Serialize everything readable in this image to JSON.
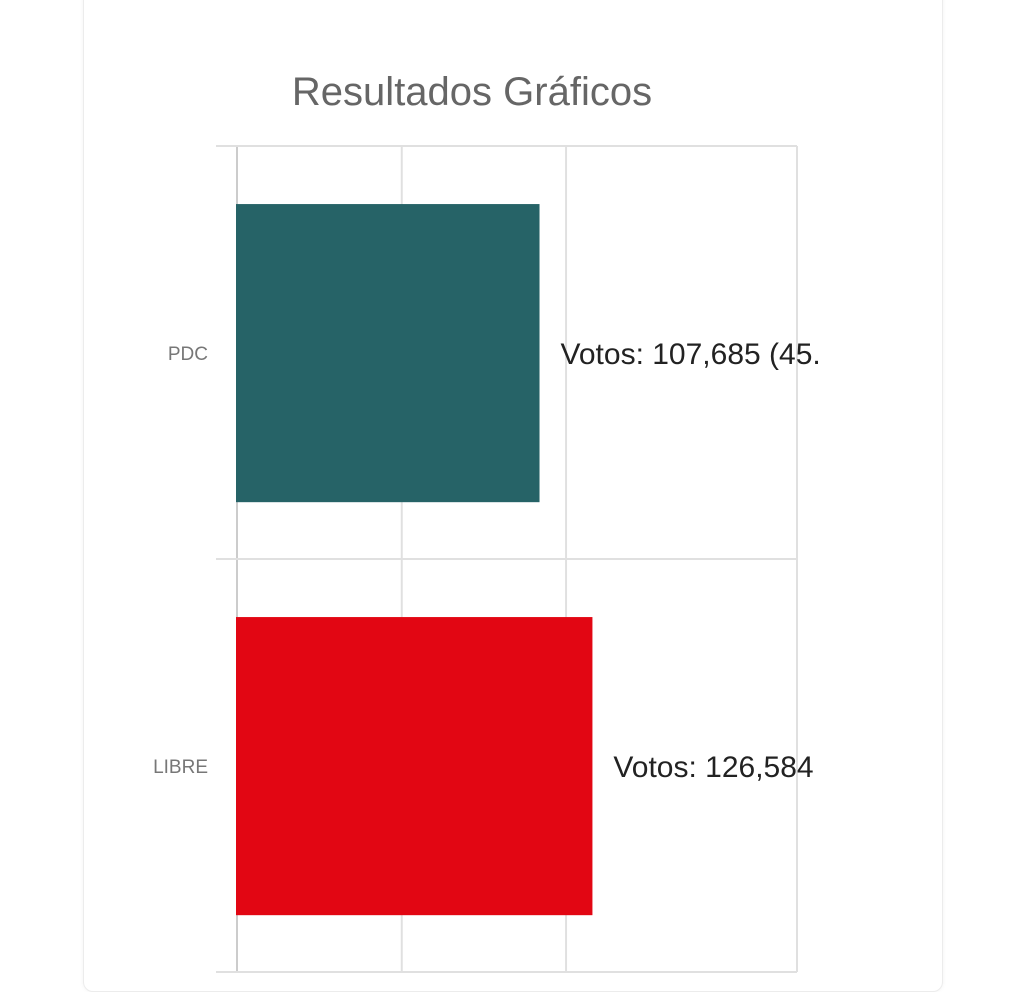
{
  "chart_data": {
    "type": "bar",
    "orientation": "horizontal",
    "title": "Resultados Gráficos",
    "categories": [
      "PDC",
      "LIBRE"
    ],
    "values": [
      107685,
      126584
    ],
    "data_labels": [
      "Votos: 107,685 (45.",
      "Votos: 126,584"
    ],
    "colors": [
      "#266367",
      "#E20613"
    ],
    "xlim": [
      0,
      200000
    ],
    "grid": true,
    "xlabel": "",
    "ylabel": ""
  }
}
